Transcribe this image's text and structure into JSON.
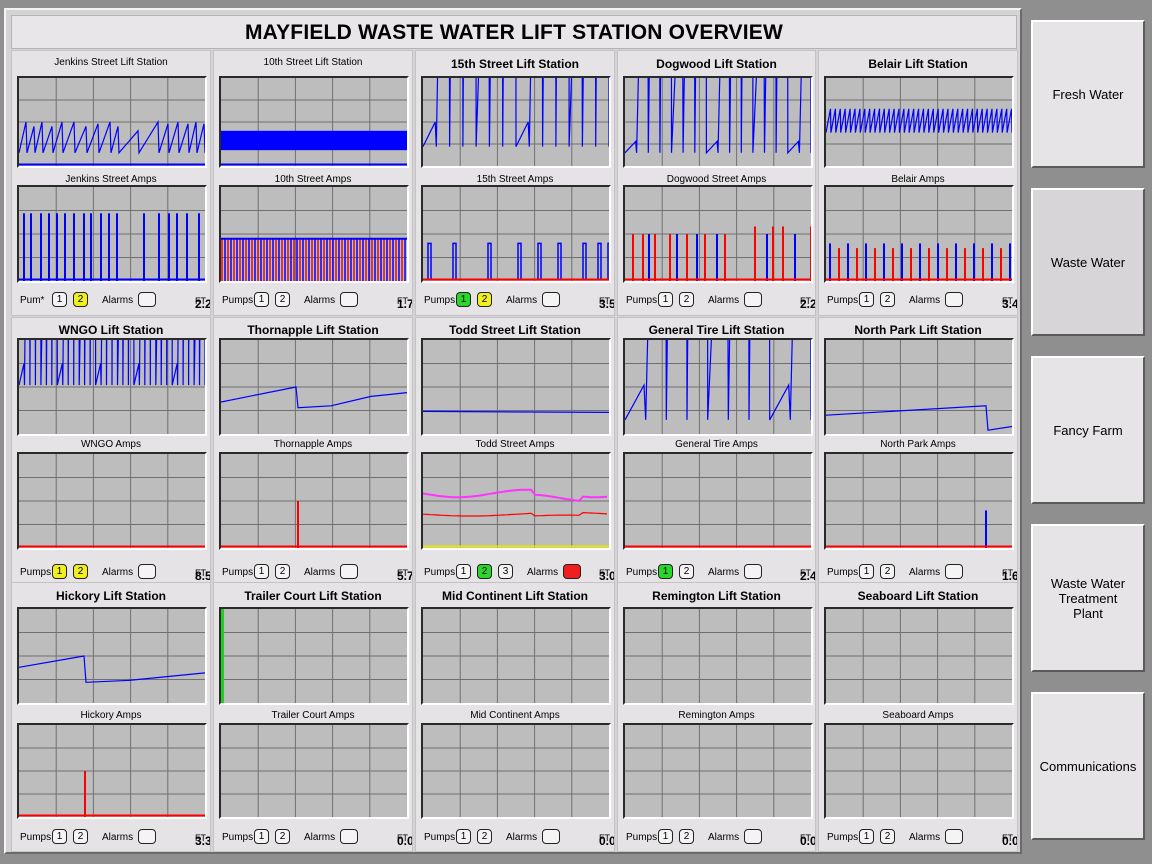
{
  "title": "MAYFIELD WASTE WATER LIFT STATION OVERVIEW",
  "footer_labels": {
    "pumps": "Pumps",
    "pumps_alt": "Pum*",
    "alarms": "Alarms",
    "unit": "FT"
  },
  "colors": {
    "blue_trace": "#0000ff",
    "red_trace": "#ff0000",
    "magenta_trace": "#ff33ff",
    "green_trace": "#22cc22",
    "yellow_trace": "#e6e600",
    "pump_yellow": "#f2ef21",
    "pump_green": "#2ad62a",
    "alarm_red": "#ef1f1f",
    "plot_bg": "#bdbdbd"
  },
  "stations": [
    {
      "title": "Jenkins Street Lift Station",
      "amps_title": "Jenkins Street Amps",
      "level": "2.2",
      "pumps_label": "Pum*",
      "pumps": [
        {
          "n": "1",
          "state": "off"
        },
        {
          "n": "2",
          "state": "yellow"
        }
      ],
      "alarm": false,
      "level_trace": "sawtooth_blue_irregular",
      "amps_trace": "blue_spikes"
    },
    {
      "title": "10th Street Lift Station",
      "amps_title": "10th Street Amps",
      "level": "1.7",
      "pumps_label": "Pumps",
      "pumps": [
        {
          "n": "1",
          "state": "off"
        },
        {
          "n": "2",
          "state": "off"
        }
      ],
      "alarm": false,
      "level_trace": "dense_blue_band",
      "amps_trace": "dense_red_blue_band"
    },
    {
      "title": "15th Street Lift Station",
      "amps_title": "15th Street Amps",
      "level": "3.5",
      "pumps_label": "Pumps",
      "pumps": [
        {
          "n": "1",
          "state": "green"
        },
        {
          "n": "2",
          "state": "yellow"
        }
      ],
      "alarm": false,
      "level_trace": "sawtooth_blue",
      "amps_trace": "blue_pulses"
    },
    {
      "title": "Dogwood Lift Station",
      "amps_title": "Dogwood Street Amps",
      "level": "2.2",
      "pumps_label": "Pumps",
      "pumps": [
        {
          "n": "1",
          "state": "off"
        },
        {
          "n": "2",
          "state": "off"
        }
      ],
      "alarm": false,
      "level_trace": "low_sawtooth_blue",
      "amps_trace": "red_blue_spikes"
    },
    {
      "title": "Belair Lift Station",
      "amps_title": "Belair Amps",
      "level": "3.4",
      "pumps_label": "Pumps",
      "pumps": [
        {
          "n": "1",
          "state": "off"
        },
        {
          "n": "2",
          "state": "off"
        }
      ],
      "alarm": false,
      "level_trace": "fast_sawtooth_blue",
      "amps_trace": "red_blue_dense_spikes"
    },
    {
      "title": "WNGO Lift Station",
      "amps_title": "WNGO Amps",
      "level": "8.5",
      "pumps_label": "Pumps",
      "pumps": [
        {
          "n": "1",
          "state": "yellow"
        },
        {
          "n": "2",
          "state": "yellow"
        }
      ],
      "alarm": false,
      "level_trace": "fast_sawtooth_blue_high",
      "amps_trace": "red_baseline"
    },
    {
      "title": "Thornapple Lift Station",
      "amps_title": "Thornapple Amps",
      "level": "5.7",
      "pumps_label": "Pumps",
      "pumps": [
        {
          "n": "1",
          "state": "off"
        },
        {
          "n": "2",
          "state": "off"
        }
      ],
      "alarm": false,
      "level_trace": "ramp_drop_ramp",
      "amps_trace": "single_red_spike"
    },
    {
      "title": "Todd Street Lift Station",
      "amps_title": "Todd Street Amps",
      "level": "3.0",
      "pumps_label": "Pumps",
      "pumps": [
        {
          "n": "1",
          "state": "off"
        },
        {
          "n": "2",
          "state": "green"
        },
        {
          "n": "3",
          "state": "off"
        }
      ],
      "alarm": true,
      "level_trace": "flat_blue",
      "amps_trace": "magenta_red_lines"
    },
    {
      "title": "General Tire Lift Station",
      "amps_title": "General Tire Amps",
      "level": "2.4",
      "pumps_label": "Pumps",
      "pumps": [
        {
          "n": "1",
          "state": "green"
        },
        {
          "n": "2",
          "state": "off"
        }
      ],
      "alarm": false,
      "level_trace": "big_sawtooth_blue",
      "amps_trace": "red_baseline"
    },
    {
      "title": "North Park Lift Station",
      "amps_title": "North Park Amps",
      "level": "1.6",
      "pumps_label": "Pumps",
      "pumps": [
        {
          "n": "1",
          "state": "off"
        },
        {
          "n": "2",
          "state": "off"
        }
      ],
      "alarm": false,
      "level_trace": "slow_ramp_drop",
      "amps_trace": "blue_spike_end"
    },
    {
      "title": "Hickory Lift Station",
      "amps_title": "Hickory Amps",
      "level": "3.3",
      "pumps_label": "Pumps",
      "pumps": [
        {
          "n": "1",
          "state": "off"
        },
        {
          "n": "2",
          "state": "off"
        }
      ],
      "alarm": false,
      "level_trace": "ramp_drop_ramp_early",
      "amps_trace": "single_red_spike_early"
    },
    {
      "title": "Trailer Court Lift Station",
      "amps_title": "Trailer Court Amps",
      "level": "0.0",
      "pumps_label": "Pumps",
      "pumps": [
        {
          "n": "1",
          "state": "off"
        },
        {
          "n": "2",
          "state": "off"
        }
      ],
      "alarm": false,
      "level_trace": "green_left_edge",
      "amps_trace": "none"
    },
    {
      "title": "Mid Continent Lift Station",
      "amps_title": "Mid Continent Amps",
      "level": "0.0",
      "pumps_label": "Pumps",
      "pumps": [
        {
          "n": "1",
          "state": "off"
        },
        {
          "n": "2",
          "state": "off"
        }
      ],
      "alarm": false,
      "level_trace": "none",
      "amps_trace": "none"
    },
    {
      "title": "Remington Lift Station",
      "amps_title": "Remington Amps",
      "level": "0.0",
      "pumps_label": "Pumps",
      "pumps": [
        {
          "n": "1",
          "state": "off"
        },
        {
          "n": "2",
          "state": "off"
        }
      ],
      "alarm": false,
      "level_trace": "none",
      "amps_trace": "none"
    },
    {
      "title": "Seaboard Lift Station",
      "amps_title": "Seaboard Amps",
      "level": "0.0",
      "pumps_label": "Pumps",
      "pumps": [
        {
          "n": "1",
          "state": "off"
        },
        {
          "n": "2",
          "state": "off"
        }
      ],
      "alarm": false,
      "level_trace": "none",
      "amps_trace": "none"
    }
  ],
  "nav": [
    {
      "label": "Fresh Water",
      "active": false
    },
    {
      "label": "Waste Water",
      "active": true
    },
    {
      "label": "Fancy Farm",
      "active": false
    },
    {
      "label": "Waste Water\nTreatment\nPlant",
      "active": false
    },
    {
      "label": "Communications",
      "active": false
    }
  ]
}
